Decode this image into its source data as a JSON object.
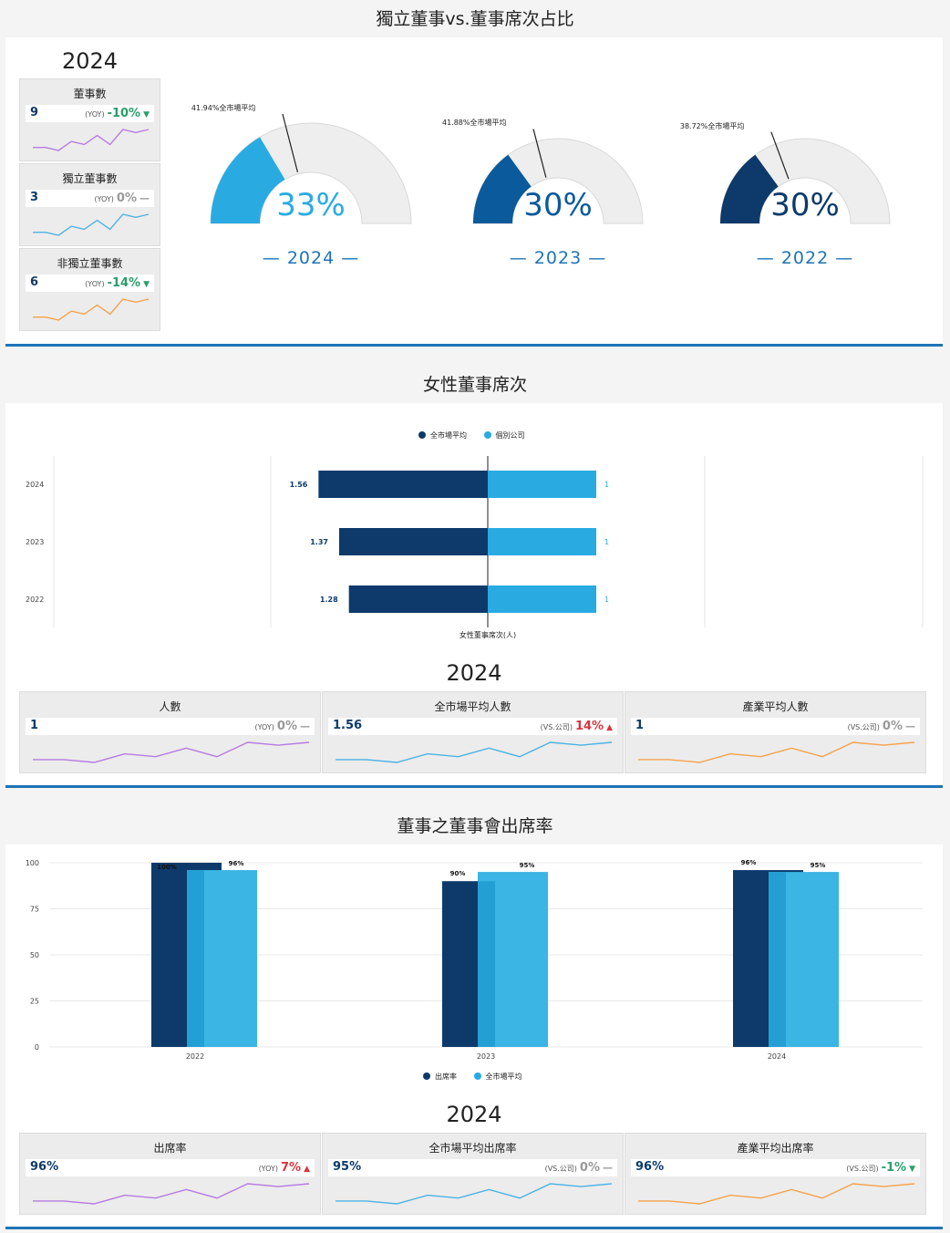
{
  "section1": {
    "title": "獨立董事vs.董事席次占比",
    "year": "2024",
    "kpis": [
      {
        "label": "董事數",
        "value": "9",
        "tag": "(YOY)",
        "change": "-10%",
        "dir": "down",
        "color": "#b57be0",
        "spark": [
          5,
          5,
          4,
          7,
          6,
          9,
          6,
          11,
          10,
          11
        ]
      },
      {
        "label": "獨立董事數",
        "value": "3",
        "tag": "(YOY)",
        "change": "0%",
        "dir": "flat",
        "color": "#4bb3e3",
        "spark": [
          5,
          5,
          4,
          7,
          6,
          9,
          6,
          11,
          10,
          11
        ]
      },
      {
        "label": "非獨立董事數",
        "value": "6",
        "tag": "(YOY)",
        "change": "-14%",
        "dir": "down",
        "color": "#f5a24b",
        "spark": [
          5,
          5,
          4,
          7,
          6,
          9,
          6,
          11,
          10,
          11
        ]
      }
    ],
    "gauges": [
      {
        "year": "2024",
        "pct": 33,
        "pct_label": "33%",
        "avg": 41.94,
        "avg_label": "41.94%全市場平均",
        "color": "#29abe2"
      },
      {
        "year": "2023",
        "pct": 30,
        "pct_label": "30%",
        "avg": 41.88,
        "avg_label": "41.88%全市場平均",
        "color": "#0a5a9c"
      },
      {
        "year": "2022",
        "pct": 30,
        "pct_label": "30%",
        "avg": 38.72,
        "avg_label": "38.72%全市場平均",
        "color": "#0d3a6b"
      }
    ]
  },
  "section2": {
    "title": "女性董事席次",
    "legend": [
      "全市場平均",
      "個別公司"
    ],
    "xlabel": "女性董事席次(人)",
    "year": "2024",
    "kpis": [
      {
        "label": "人數",
        "value": "1",
        "tag": "(YOY)",
        "change": "0%",
        "dir": "flat",
        "color": "#b57be0",
        "spark": [
          5,
          5,
          4,
          7,
          6,
          9,
          6,
          11,
          10,
          11
        ]
      },
      {
        "label": "全市場平均人數",
        "value": "1.56",
        "tag": "(VS.公司)",
        "change": "14%",
        "dir": "up",
        "color": "#4bb3e3",
        "spark": [
          5,
          5,
          4,
          7,
          6,
          9,
          6,
          11,
          10,
          11
        ]
      },
      {
        "label": "產業平均人數",
        "value": "1",
        "tag": "(VS.公司)",
        "change": "0%",
        "dir": "flat",
        "color": "#f5a24b",
        "spark": [
          5,
          5,
          4,
          7,
          6,
          9,
          6,
          11,
          10,
          11
        ]
      }
    ]
  },
  "section3": {
    "title": "董事之董事會出席率",
    "legend": [
      "出席率",
      "全市場平均"
    ],
    "year": "2024",
    "kpis": [
      {
        "label": "出席率",
        "value": "96%",
        "tag": "(YOY)",
        "change": "7%",
        "dir": "up",
        "color": "#b57be0",
        "spark": [
          5,
          5,
          4,
          7,
          6,
          9,
          6,
          11,
          10,
          11
        ]
      },
      {
        "label": "全市場平均出席率",
        "value": "95%",
        "tag": "(VS.公司)",
        "change": "0%",
        "dir": "flat",
        "color": "#4bb3e3",
        "spark": [
          5,
          5,
          4,
          7,
          6,
          9,
          6,
          11,
          10,
          11
        ]
      },
      {
        "label": "產業平均出席率",
        "value": "96%",
        "tag": "(VS.公司)",
        "change": "-1%",
        "dir": "down",
        "color": "#f5a24b",
        "spark": [
          5,
          5,
          4,
          7,
          6,
          9,
          6,
          11,
          10,
          11
        ]
      }
    ]
  },
  "colors": {
    "navy": "#0d3a6b",
    "light_blue": "#29abe2",
    "up": "#d9363e",
    "down": "#2a9d6b",
    "flat": "#999999"
  },
  "chart_data": [
    {
      "type": "bar",
      "orientation": "horizontal-diverging",
      "categories": [
        "2024",
        "2023",
        "2022"
      ],
      "series": [
        {
          "name": "全市場平均",
          "values": [
            1.56,
            1.37,
            1.28
          ]
        },
        {
          "name": "個別公司",
          "values": [
            1,
            1,
            1
          ]
        }
      ],
      "value_labels": [
        [
          "1.56",
          "1.37",
          "1.28"
        ],
        [
          "1",
          "1",
          "1"
        ]
      ],
      "xlabel": "女性董事席次(人)",
      "legend": "top-center",
      "grid": true
    },
    {
      "type": "bar",
      "categories": [
        "2022",
        "2023",
        "2024"
      ],
      "series": [
        {
          "name": "出席率",
          "values": [
            100,
            90,
            96
          ],
          "labels": [
            "100%",
            "90%",
            "96%"
          ]
        },
        {
          "name": "全市場平均",
          "values": [
            96,
            95,
            95
          ],
          "labels": [
            "96%",
            "95%",
            "95%"
          ]
        }
      ],
      "ylim": [
        0,
        100
      ],
      "yticks": [
        "0",
        "25",
        "50",
        "75",
        "100"
      ],
      "legend": "bottom-center",
      "grid": true
    }
  ]
}
